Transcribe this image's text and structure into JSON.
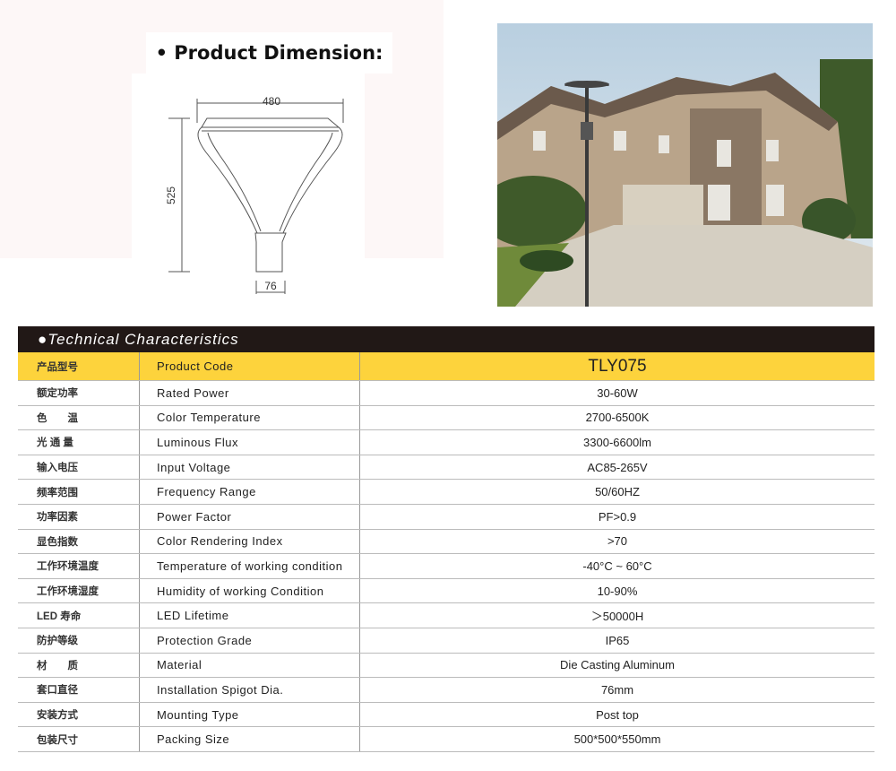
{
  "dimension": {
    "title": "• Product Dimension:",
    "width_label": "480",
    "height_label": "525",
    "spigot_label": "76"
  },
  "table": {
    "header": "●Technical Characteristics",
    "product_row": {
      "cn": "产品型号",
      "en": "Product Code",
      "value": "TLY075"
    },
    "rows": [
      {
        "cn": "额定功率",
        "en": "Rated Power",
        "value": "30-60W"
      },
      {
        "cn": "色　　温",
        "en": "Color Temperature",
        "value": "2700-6500K"
      },
      {
        "cn": "光 通 量",
        "en": "Luminous Flux",
        "value": "3300-6600lm"
      },
      {
        "cn": "输入电压",
        "en": "Input Voltage",
        "value": "AC85-265V"
      },
      {
        "cn": "频率范围",
        "en": "Frequency Range",
        "value": "50/60HZ"
      },
      {
        "cn": "功率因素",
        "en": "Power Factor",
        "value": "PF>0.9"
      },
      {
        "cn": "显色指数",
        "en": "Color Rendering Index",
        "value": ">70"
      },
      {
        "cn": "工作环境温度",
        "en": "Temperature of working condition",
        "value": "-40°C ~ 60°C"
      },
      {
        "cn": "工作环境湿度",
        "en": "Humidity of working Condition",
        "value": "10-90%"
      },
      {
        "cn": "LED 寿命",
        "en": "LED Lifetime",
        "value": "＞50000H"
      },
      {
        "cn": "防护等级",
        "en": "Protection Grade",
        "value": "IP65"
      },
      {
        "cn": "材　　质",
        "en": "Material",
        "value": "Die Casting Aluminum"
      },
      {
        "cn": "套口直径",
        "en": "Installation Spigot Dia.",
        "value": "76mm"
      },
      {
        "cn": "安装方式",
        "en": "Mounting Type",
        "value": "Post top"
      },
      {
        "cn": "包装尺寸",
        "en": "Packing Size",
        "value": "500*500*550mm"
      }
    ]
  },
  "colors": {
    "header_bg": "#211816",
    "accent_yellow": "#fdd33c"
  }
}
